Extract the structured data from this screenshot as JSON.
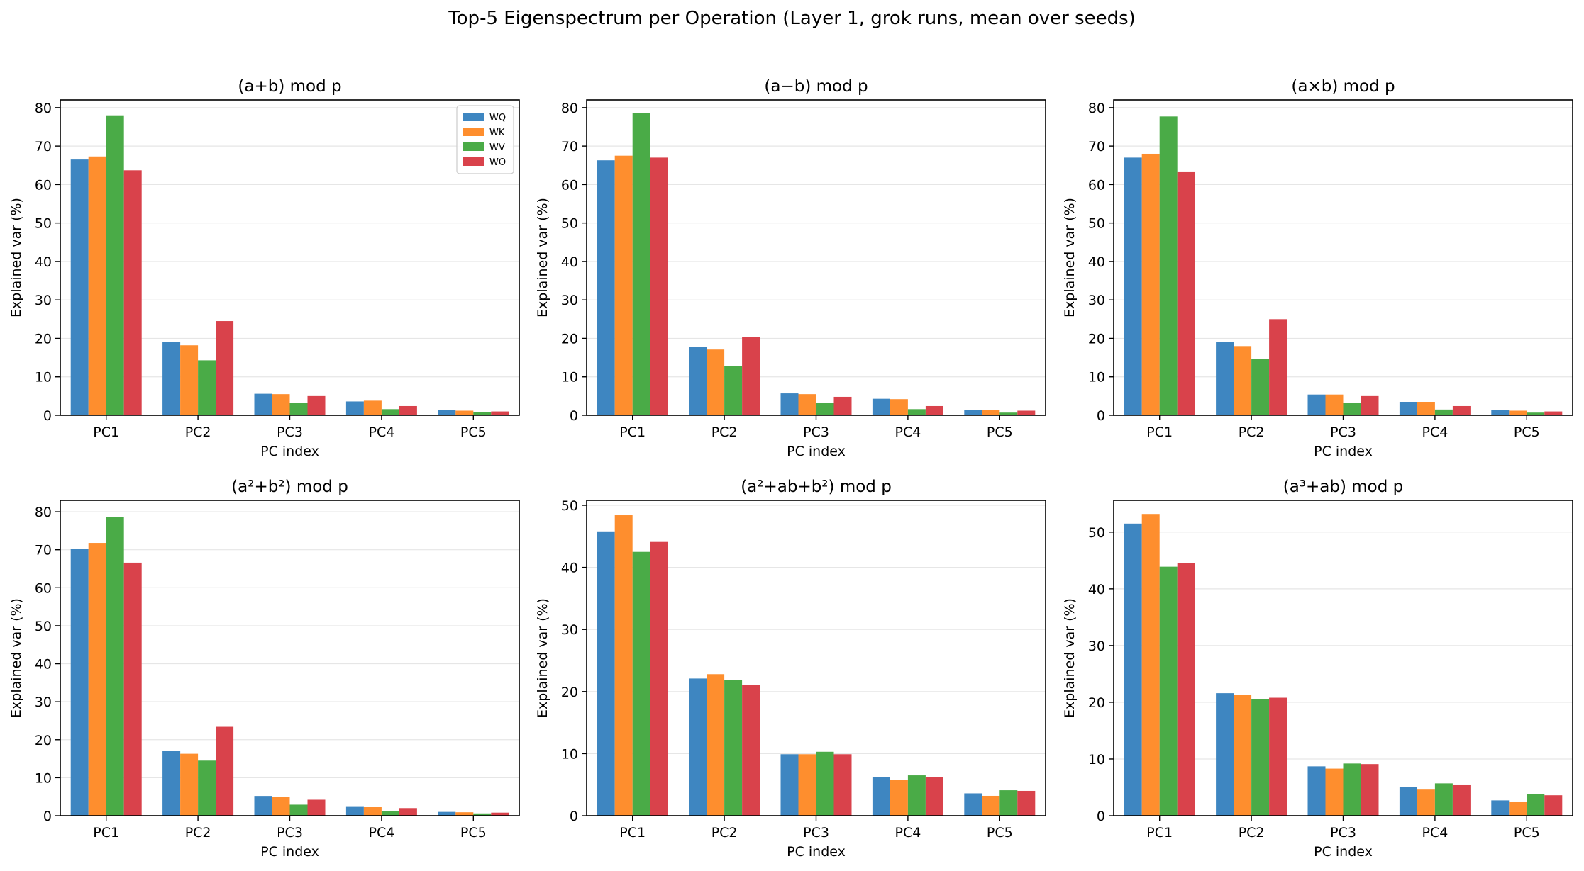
{
  "figure": {
    "title": "Top-5 Eigenspectrum per Operation (Layer 1, grok runs, mean over seeds)"
  },
  "chart_data": [
    {
      "type": "bar",
      "title": "(a+b) mod p",
      "xlabel": "PC index",
      "ylabel": "Explained var (%)",
      "categories": [
        "PC1",
        "PC2",
        "PC3",
        "PC4",
        "PC5"
      ],
      "ylim": [
        0,
        82
      ],
      "yticks": [
        0,
        10,
        20,
        30,
        40,
        50,
        60,
        70,
        80
      ],
      "legend": "top-right",
      "series": [
        {
          "name": "WQ",
          "values": [
            66.5,
            19.0,
            5.6,
            3.6,
            1.3
          ]
        },
        {
          "name": "WK",
          "values": [
            67.3,
            18.2,
            5.5,
            3.8,
            1.2
          ]
        },
        {
          "name": "WV",
          "values": [
            78.0,
            14.3,
            3.2,
            1.6,
            0.8
          ]
        },
        {
          "name": "WO",
          "values": [
            63.7,
            24.5,
            5.0,
            2.4,
            1.0
          ]
        }
      ]
    },
    {
      "type": "bar",
      "title": "(a−b) mod p",
      "xlabel": "PC index",
      "ylabel": "Explained var (%)",
      "categories": [
        "PC1",
        "PC2",
        "PC3",
        "PC4",
        "PC5"
      ],
      "ylim": [
        0,
        82
      ],
      "yticks": [
        0,
        10,
        20,
        30,
        40,
        50,
        60,
        70,
        80
      ],
      "series": [
        {
          "name": "WQ",
          "values": [
            66.3,
            17.8,
            5.7,
            4.3,
            1.4
          ]
        },
        {
          "name": "WK",
          "values": [
            67.5,
            17.1,
            5.5,
            4.2,
            1.3
          ]
        },
        {
          "name": "WV",
          "values": [
            78.6,
            12.8,
            3.2,
            1.6,
            0.7
          ]
        },
        {
          "name": "WO",
          "values": [
            67.0,
            20.4,
            4.8,
            2.4,
            1.2
          ]
        }
      ]
    },
    {
      "type": "bar",
      "title": "(a×b) mod p",
      "xlabel": "PC index",
      "ylabel": "Explained var (%)",
      "categories": [
        "PC1",
        "PC2",
        "PC3",
        "PC4",
        "PC5"
      ],
      "ylim": [
        0,
        82
      ],
      "yticks": [
        0,
        10,
        20,
        30,
        40,
        50,
        60,
        70,
        80
      ],
      "series": [
        {
          "name": "WQ",
          "values": [
            67.0,
            19.0,
            5.4,
            3.5,
            1.4
          ]
        },
        {
          "name": "WK",
          "values": [
            68.0,
            18.0,
            5.4,
            3.5,
            1.2
          ]
        },
        {
          "name": "WV",
          "values": [
            77.7,
            14.6,
            3.2,
            1.5,
            0.7
          ]
        },
        {
          "name": "WO",
          "values": [
            63.4,
            25.0,
            5.0,
            2.4,
            1.0
          ]
        }
      ]
    },
    {
      "type": "bar",
      "title": "(a²+b²) mod p",
      "xlabel": "PC index",
      "ylabel": "Explained var (%)",
      "categories": [
        "PC1",
        "PC2",
        "PC3",
        "PC4",
        "PC5"
      ],
      "ylim": [
        0,
        83
      ],
      "yticks": [
        0,
        10,
        20,
        30,
        40,
        50,
        60,
        70,
        80
      ],
      "series": [
        {
          "name": "WQ",
          "values": [
            70.3,
            17.0,
            5.2,
            2.5,
            1.0
          ]
        },
        {
          "name": "WK",
          "values": [
            71.8,
            16.3,
            5.0,
            2.4,
            0.9
          ]
        },
        {
          "name": "WV",
          "values": [
            78.6,
            14.5,
            2.9,
            1.3,
            0.6
          ]
        },
        {
          "name": "WO",
          "values": [
            66.6,
            23.4,
            4.2,
            2.0,
            0.8
          ]
        }
      ]
    },
    {
      "type": "bar",
      "title": "(a²+ab+b²) mod p",
      "xlabel": "PC index",
      "ylabel": "Explained var (%)",
      "categories": [
        "PC1",
        "PC2",
        "PC3",
        "PC4",
        "PC5"
      ],
      "ylim": [
        0,
        50.8
      ],
      "yticks": [
        0,
        10,
        20,
        30,
        40,
        50
      ],
      "series": [
        {
          "name": "WQ",
          "values": [
            45.8,
            22.1,
            9.9,
            6.2,
            3.6
          ]
        },
        {
          "name": "WK",
          "values": [
            48.4,
            22.8,
            9.9,
            5.8,
            3.2
          ]
        },
        {
          "name": "WV",
          "values": [
            42.5,
            21.9,
            10.3,
            6.5,
            4.1
          ]
        },
        {
          "name": "WO",
          "values": [
            44.1,
            21.1,
            9.9,
            6.2,
            4.0
          ]
        }
      ]
    },
    {
      "type": "bar",
      "title": "(a³+ab) mod p",
      "xlabel": "PC index",
      "ylabel": "Explained var (%)",
      "categories": [
        "PC1",
        "PC2",
        "PC3",
        "PC4",
        "PC5"
      ],
      "ylim": [
        0,
        55.6
      ],
      "yticks": [
        0,
        10,
        20,
        30,
        40,
        50
      ],
      "series": [
        {
          "name": "WQ",
          "values": [
            51.5,
            21.6,
            8.7,
            5.0,
            2.7
          ]
        },
        {
          "name": "WK",
          "values": [
            53.2,
            21.3,
            8.3,
            4.6,
            2.5
          ]
        },
        {
          "name": "WV",
          "values": [
            43.9,
            20.6,
            9.2,
            5.7,
            3.8
          ]
        },
        {
          "name": "WO",
          "values": [
            44.6,
            20.8,
            9.1,
            5.5,
            3.6
          ]
        }
      ]
    }
  ],
  "colors": {
    "WQ": "#3e86c1",
    "WK": "#fe8e2e",
    "WV": "#4aab47",
    "WO": "#d9424b",
    "grid": "#e6e6e6",
    "axis": "#000000"
  }
}
